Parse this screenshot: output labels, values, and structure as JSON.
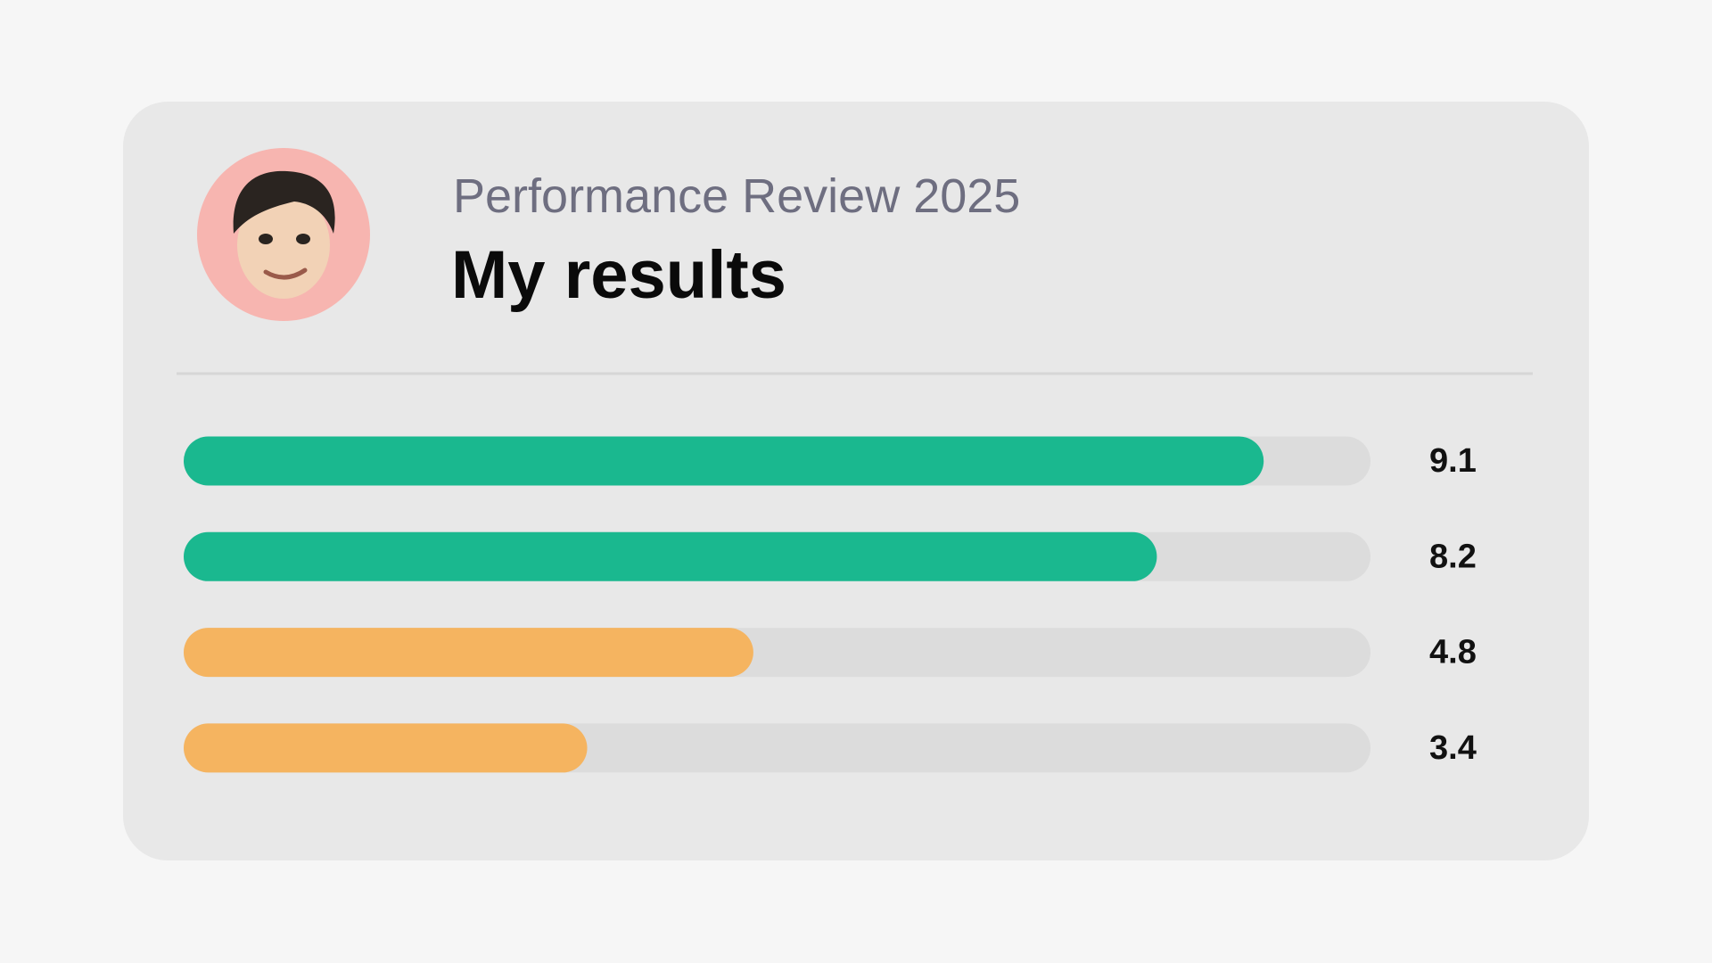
{
  "chart_data": {
    "type": "bar",
    "subtitle": "Performance Review 2025",
    "title": "My results",
    "values": [
      9.1,
      8.2,
      4.8,
      3.4
    ],
    "colors": [
      "#1ab88f",
      "#1ab88f",
      "#f5b460",
      "#f5b460"
    ],
    "track_color": "#dcdcdc",
    "xlim": [
      0,
      10
    ]
  }
}
